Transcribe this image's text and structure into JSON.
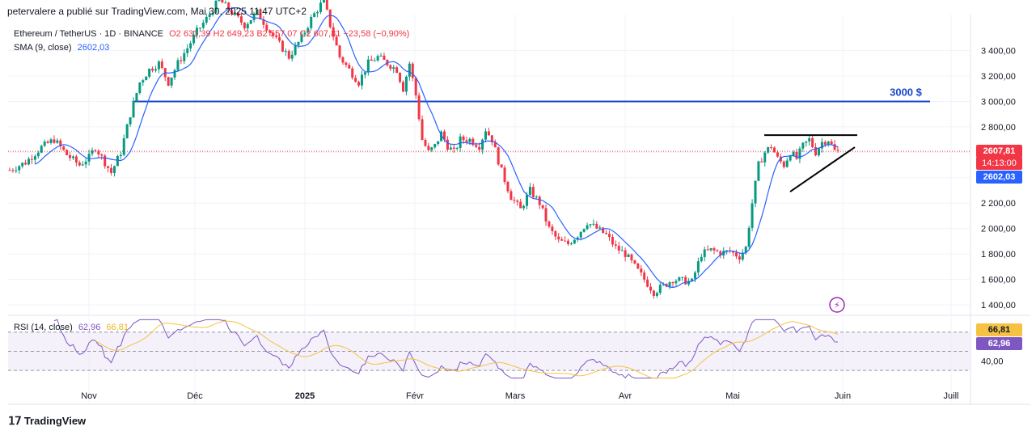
{
  "header": "petervalere a publié sur TradingView.com, Mai 30, 2025 11:47 UTC+2",
  "legend": {
    "symbol": "Ethereum / TetherUS · 1D · BINANCE",
    "ohlc": "O2 631,39  H2 649,23  B2 557,07  C2 607,81  −23,58 (−0,90%)",
    "sma_label": "SMA (9, close)",
    "sma_value": "2602,03"
  },
  "rsi_legend": {
    "label": "RSI (14, close)",
    "value": "62,96",
    "ma_value": "66,81"
  },
  "annotation_3000": "3000 $",
  "price_tags": {
    "last": "2607,81",
    "countdown": "14:13:00",
    "sma": "2602,03",
    "rsi_ma": "66,81",
    "rsi": "62,96"
  },
  "footer": "TradingView",
  "colors": {
    "up": "#089981",
    "down": "#f23645",
    "sma": "#2962ff",
    "level_line": "#1848cc",
    "rsi": "#7e57c2",
    "rsi_ma": "#f5c243",
    "rsi_band": "#ede7f6"
  },
  "chart_data": {
    "type": "candlestick",
    "title": "Ethereum / TetherUS · 1D · BINANCE",
    "y_ticks": [
      "3 400,00",
      "3 200,00",
      "3 000,00",
      "2 800,00",
      "2 600,00",
      "2 400,00",
      "2 200,00",
      "2 000,00",
      "1 800,00",
      "1 600,00",
      "1 400,00"
    ],
    "y_tick_values": [
      3400,
      3200,
      3000,
      2800,
      2600,
      2400,
      2200,
      2000,
      1800,
      1600,
      1400
    ],
    "x_ticks": [
      "Nov",
      "Déc",
      "2025",
      "Févr",
      "Mars",
      "Avr",
      "Mai",
      "Juin",
      "Juill"
    ],
    "ylim": [
      1330,
      3620
    ],
    "horizontal_level": 3000,
    "last_price": 2607.81,
    "series": [
      {
        "name": "SMA (9, close)",
        "values_note": "9-day simple moving average of close"
      },
      {
        "name": "RSI (14, close)"
      }
    ],
    "price_path": [
      [
        0,
        2460
      ],
      [
        5,
        2520
      ],
      [
        10,
        2640
      ],
      [
        14,
        2700
      ],
      [
        18,
        2580
      ],
      [
        22,
        2500
      ],
      [
        25,
        2560
      ],
      [
        27,
        2640
      ],
      [
        30,
        2520
      ],
      [
        32,
        2440
      ],
      [
        35,
        2600
      ],
      [
        38,
        2900
      ],
      [
        41,
        3150
      ],
      [
        44,
        3250
      ],
      [
        47,
        3300
      ],
      [
        50,
        3150
      ],
      [
        53,
        3300
      ],
      [
        56,
        3420
      ],
      [
        59,
        3550
      ],
      [
        62,
        3650
      ],
      [
        66,
        3800
      ],
      [
        70,
        3700
      ],
      [
        74,
        3600
      ],
      [
        78,
        3700
      ],
      [
        82,
        3550
      ],
      [
        85,
        3450
      ],
      [
        88,
        3350
      ],
      [
        92,
        3500
      ],
      [
        95,
        3650
      ],
      [
        99,
        3800
      ],
      [
        101,
        3600
      ],
      [
        104,
        3350
      ],
      [
        107,
        3250
      ],
      [
        110,
        3150
      ],
      [
        113,
        3300
      ],
      [
        116,
        3350
      ],
      [
        119,
        3300
      ],
      [
        122,
        3250
      ],
      [
        124,
        3100
      ],
      [
        126,
        3300
      ],
      [
        128,
        3050
      ],
      [
        130,
        2700
      ],
      [
        132,
        2600
      ],
      [
        134,
        2650
      ],
      [
        136,
        2750
      ],
      [
        138,
        2650
      ],
      [
        140,
        2600
      ],
      [
        142,
        2700
      ],
      [
        145,
        2700
      ],
      [
        148,
        2650
      ],
      [
        150,
        2780
      ],
      [
        152,
        2700
      ],
      [
        155,
        2450
      ],
      [
        158,
        2250
      ],
      [
        161,
        2150
      ],
      [
        164,
        2300
      ],
      [
        167,
        2200
      ],
      [
        170,
        2000
      ],
      [
        173,
        1900
      ],
      [
        176,
        1880
      ],
      [
        179,
        1950
      ],
      [
        182,
        2050
      ],
      [
        185,
        2000
      ],
      [
        188,
        1950
      ],
      [
        191,
        1850
      ],
      [
        194,
        1800
      ],
      [
        197,
        1700
      ],
      [
        200,
        1600
      ],
      [
        203,
        1500
      ],
      [
        206,
        1550
      ],
      [
        209,
        1600
      ],
      [
        212,
        1590
      ],
      [
        215,
        1580
      ],
      [
        218,
        1800
      ],
      [
        221,
        1830
      ],
      [
        224,
        1810
      ],
      [
        227,
        1820
      ],
      [
        230,
        1780
      ],
      [
        232,
        1850
      ],
      [
        234,
        2200
      ],
      [
        236,
        2500
      ],
      [
        238,
        2600
      ],
      [
        240,
        2650
      ],
      [
        242,
        2550
      ],
      [
        244,
        2500
      ],
      [
        246,
        2600
      ],
      [
        248,
        2550
      ],
      [
        250,
        2650
      ],
      [
        252,
        2700
      ],
      [
        254,
        2600
      ],
      [
        256,
        2680
      ],
      [
        258,
        2700
      ],
      [
        260,
        2610
      ]
    ],
    "rsi_ticks": [
      "40,00"
    ],
    "rsi_levels": [
      70,
      50,
      30
    ],
    "rsi_last": 62.96,
    "rsi_ma_last": 66.81
  }
}
